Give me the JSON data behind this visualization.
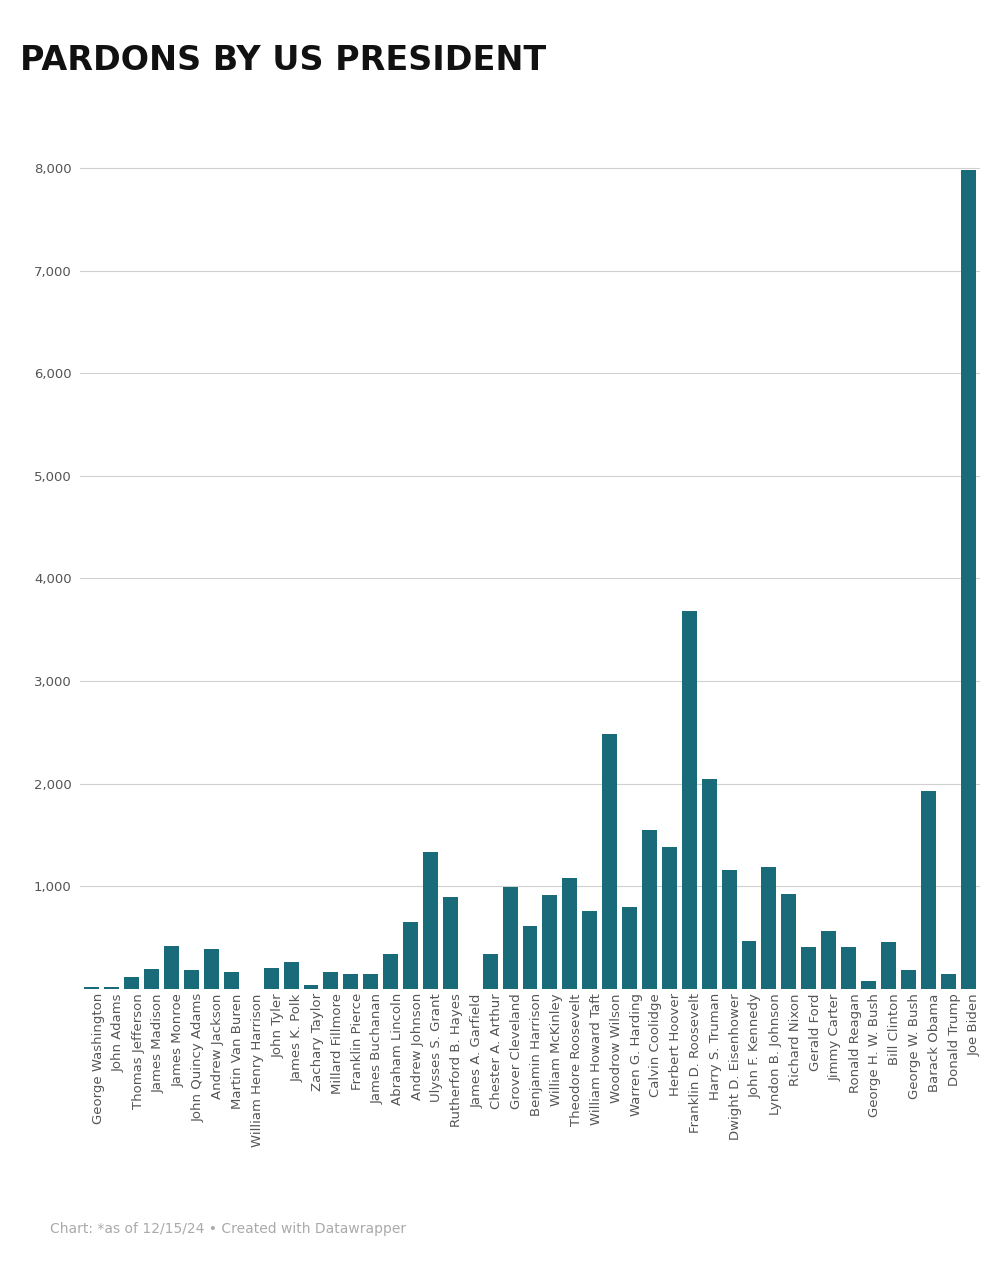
{
  "title": "PARDONS BY US PRESIDENT",
  "footnote": "Chart: *as of 12/15/24 • Created with Datawrapper",
  "bar_color": "#1a6b7a",
  "background_color": "#ffffff",
  "presidents": [
    "George Washington",
    "John Adams",
    "Thomas Jefferson",
    "James Madison",
    "James Monroe",
    "John Quincy Adams",
    "Andrew Jackson",
    "Martin Van Buren",
    "William Henry Harrison",
    "John Tyler",
    "James K. Polk",
    "Zachary Taylor",
    "Millard Fillmore",
    "Franklin Pierce",
    "James Buchanan",
    "Abraham Lincoln",
    "Andrew Johnson",
    "Ulysses S. Grant",
    "Rutherford B. Hayes",
    "James A. Garfield",
    "Chester A. Arthur",
    "Grover Cleveland",
    "Benjamin Harrison",
    "William McKinley",
    "Theodore Roosevelt",
    "William Howard Taft",
    "Woodrow Wilson",
    "Warren G. Harding",
    "Calvin Coolidge",
    "Herbert Hoover",
    "Franklin D. Roosevelt",
    "Harry S. Truman",
    "Dwight D. Eisenhower",
    "John F. Kennedy",
    "Lyndon B. Johnson",
    "Richard Nixon",
    "Gerald Ford",
    "Jimmy Carter",
    "Ronald Reagan",
    "George H. W. Bush",
    "Bill Clinton",
    "George W. Bush",
    "Barack Obama",
    "Donald Trump",
    "Joe Biden"
  ],
  "values": [
    16,
    21,
    119,
    196,
    419,
    183,
    386,
    168,
    0,
    209,
    268,
    38,
    170,
    142,
    150,
    343,
    654,
    1332,
    893,
    0,
    337,
    993,
    613,
    918,
    1081,
    758,
    2480,
    800,
    1545,
    1385,
    3687,
    2044,
    1157,
    472,
    1187,
    926,
    409,
    566,
    406,
    77,
    459,
    189,
    1927,
    143,
    7979
  ],
  "ylim": [
    0,
    8400
  ],
  "yticks": [
    1000,
    2000,
    3000,
    4000,
    5000,
    6000,
    7000,
    8000
  ],
  "grid_color": "#d0d0d0",
  "title_fontsize": 24,
  "tick_fontsize": 9.5,
  "footnote_fontsize": 10,
  "footnote_color": "#aaaaaa",
  "label_color": "#555555",
  "title_color": "#111111"
}
